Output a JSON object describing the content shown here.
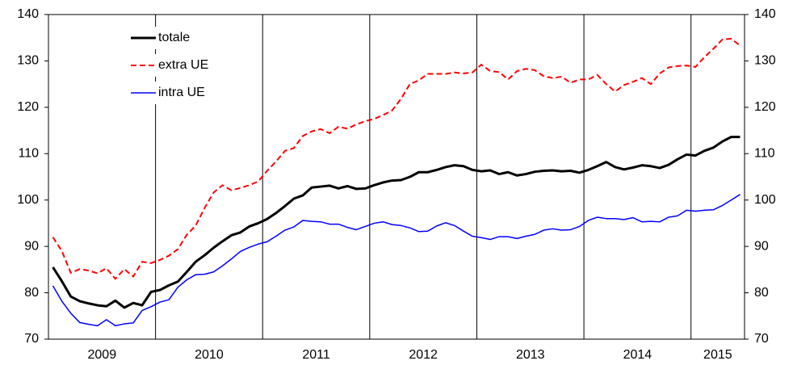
{
  "chart_data": {
    "type": "line",
    "categories": [
      "2009",
      null,
      null,
      null,
      null,
      null,
      null,
      null,
      null,
      null,
      null,
      null,
      "2010",
      null,
      null,
      null,
      null,
      null,
      null,
      null,
      null,
      null,
      null,
      null,
      "2011",
      null,
      null,
      null,
      null,
      null,
      null,
      null,
      null,
      null,
      null,
      null,
      "2012",
      null,
      null,
      null,
      null,
      null,
      null,
      null,
      null,
      null,
      null,
      null,
      "2013",
      null,
      null,
      null,
      null,
      null,
      null,
      null,
      null,
      null,
      null,
      null,
      "2014",
      null,
      null,
      null,
      null,
      null,
      null,
      null,
      null,
      null,
      null,
      null,
      "2015",
      null,
      null,
      null,
      null,
      null
    ],
    "series": [
      {
        "name": "totale",
        "color": "#000000",
        "dash": "solid",
        "width": 3,
        "values": [
          85.5,
          82.5,
          79.2,
          78.2,
          77.7,
          77.3,
          77.1,
          78.3,
          76.8,
          77.8,
          77.3,
          80.2,
          80.6,
          81.6,
          82.4,
          84.5,
          86.7,
          88.1,
          89.7,
          91.1,
          92.4,
          93,
          94.3,
          95,
          95.9,
          97.2,
          98.7,
          100.3,
          101,
          102.7,
          102.9,
          103.1,
          102.5,
          103,
          102.4,
          102.5,
          103.2,
          103.8,
          104.2,
          104.3,
          105,
          106,
          106,
          106.5,
          107.1,
          107.5,
          107.3,
          106.5,
          106.2,
          106.4,
          105.6,
          106,
          105.3,
          105.6,
          106.1,
          106.3,
          106.4,
          106.2,
          106.3,
          105.9,
          106.5,
          107.3,
          108.2,
          107.1,
          106.6,
          107,
          107.5,
          107.3,
          106.9,
          107.6,
          108.8,
          109.8,
          109.6,
          110.6,
          111.3,
          112.6,
          113.6,
          113.6
        ]
      },
      {
        "name": "extra UE",
        "color": "#ff0000",
        "dash": "dashed",
        "width": 2,
        "values": [
          92,
          89,
          84.3,
          85.1,
          84.8,
          84.2,
          85.3,
          83,
          85.1,
          83.5,
          86.7,
          86.4,
          87.1,
          88,
          89.4,
          92.5,
          94.5,
          98.3,
          101.6,
          103.2,
          102.1,
          102.6,
          103.2,
          104,
          106.3,
          108.3,
          110.6,
          111.2,
          113.8,
          114.8,
          115.3,
          114.4,
          115.8,
          115.4,
          116.3,
          117,
          117.5,
          118.3,
          119.3,
          121.8,
          125,
          125.8,
          127.2,
          127.2,
          127.2,
          127.5,
          127.3,
          127.5,
          129.2,
          127.8,
          127.6,
          126,
          127.8,
          128.3,
          128,
          126.7,
          126.3,
          126.6,
          125.3,
          126,
          126,
          127,
          125,
          123.4,
          124.8,
          125.5,
          126.3,
          125,
          127.3,
          128.6,
          128.9,
          129,
          128.7,
          130.8,
          132.6,
          134.6,
          134.8,
          133.3
        ]
      },
      {
        "name": "intra UE",
        "color": "#0000ff",
        "dash": "solid",
        "width": 1.5,
        "values": [
          81.5,
          78.2,
          75.6,
          73.6,
          73.2,
          72.9,
          74.2,
          72.9,
          73.3,
          73.5,
          76.2,
          77,
          78,
          78.5,
          81.2,
          82.8,
          83.9,
          84,
          84.5,
          85.8,
          87.3,
          88.9,
          89.8,
          90.5,
          91,
          92.2,
          93.5,
          94.2,
          95.6,
          95.4,
          95.3,
          94.8,
          94.8,
          94.1,
          93.6,
          94.3,
          95,
          95.3,
          94.7,
          94.5,
          94,
          93.2,
          93.3,
          94.4,
          95.1,
          94.5,
          93.3,
          92.2,
          91.9,
          91.5,
          92.1,
          92.1,
          91.7,
          92.2,
          92.6,
          93.5,
          93.8,
          93.5,
          93.6,
          94.3,
          95.6,
          96.3,
          96,
          96,
          95.8,
          96.2,
          95.3,
          95.4,
          95.3,
          96.3,
          96.6,
          97.8,
          97.6,
          97.8,
          97.9,
          98.8,
          100,
          101.2
        ]
      }
    ],
    "ylim": [
      70,
      140
    ],
    "yticks": [
      70,
      80,
      90,
      100,
      110,
      120,
      130,
      140
    ],
    "y2lim": [
      70,
      140
    ],
    "y2ticks": [
      70,
      80,
      90,
      100,
      110,
      120,
      130,
      140
    ],
    "legend": "upper-left",
    "grid": false
  }
}
